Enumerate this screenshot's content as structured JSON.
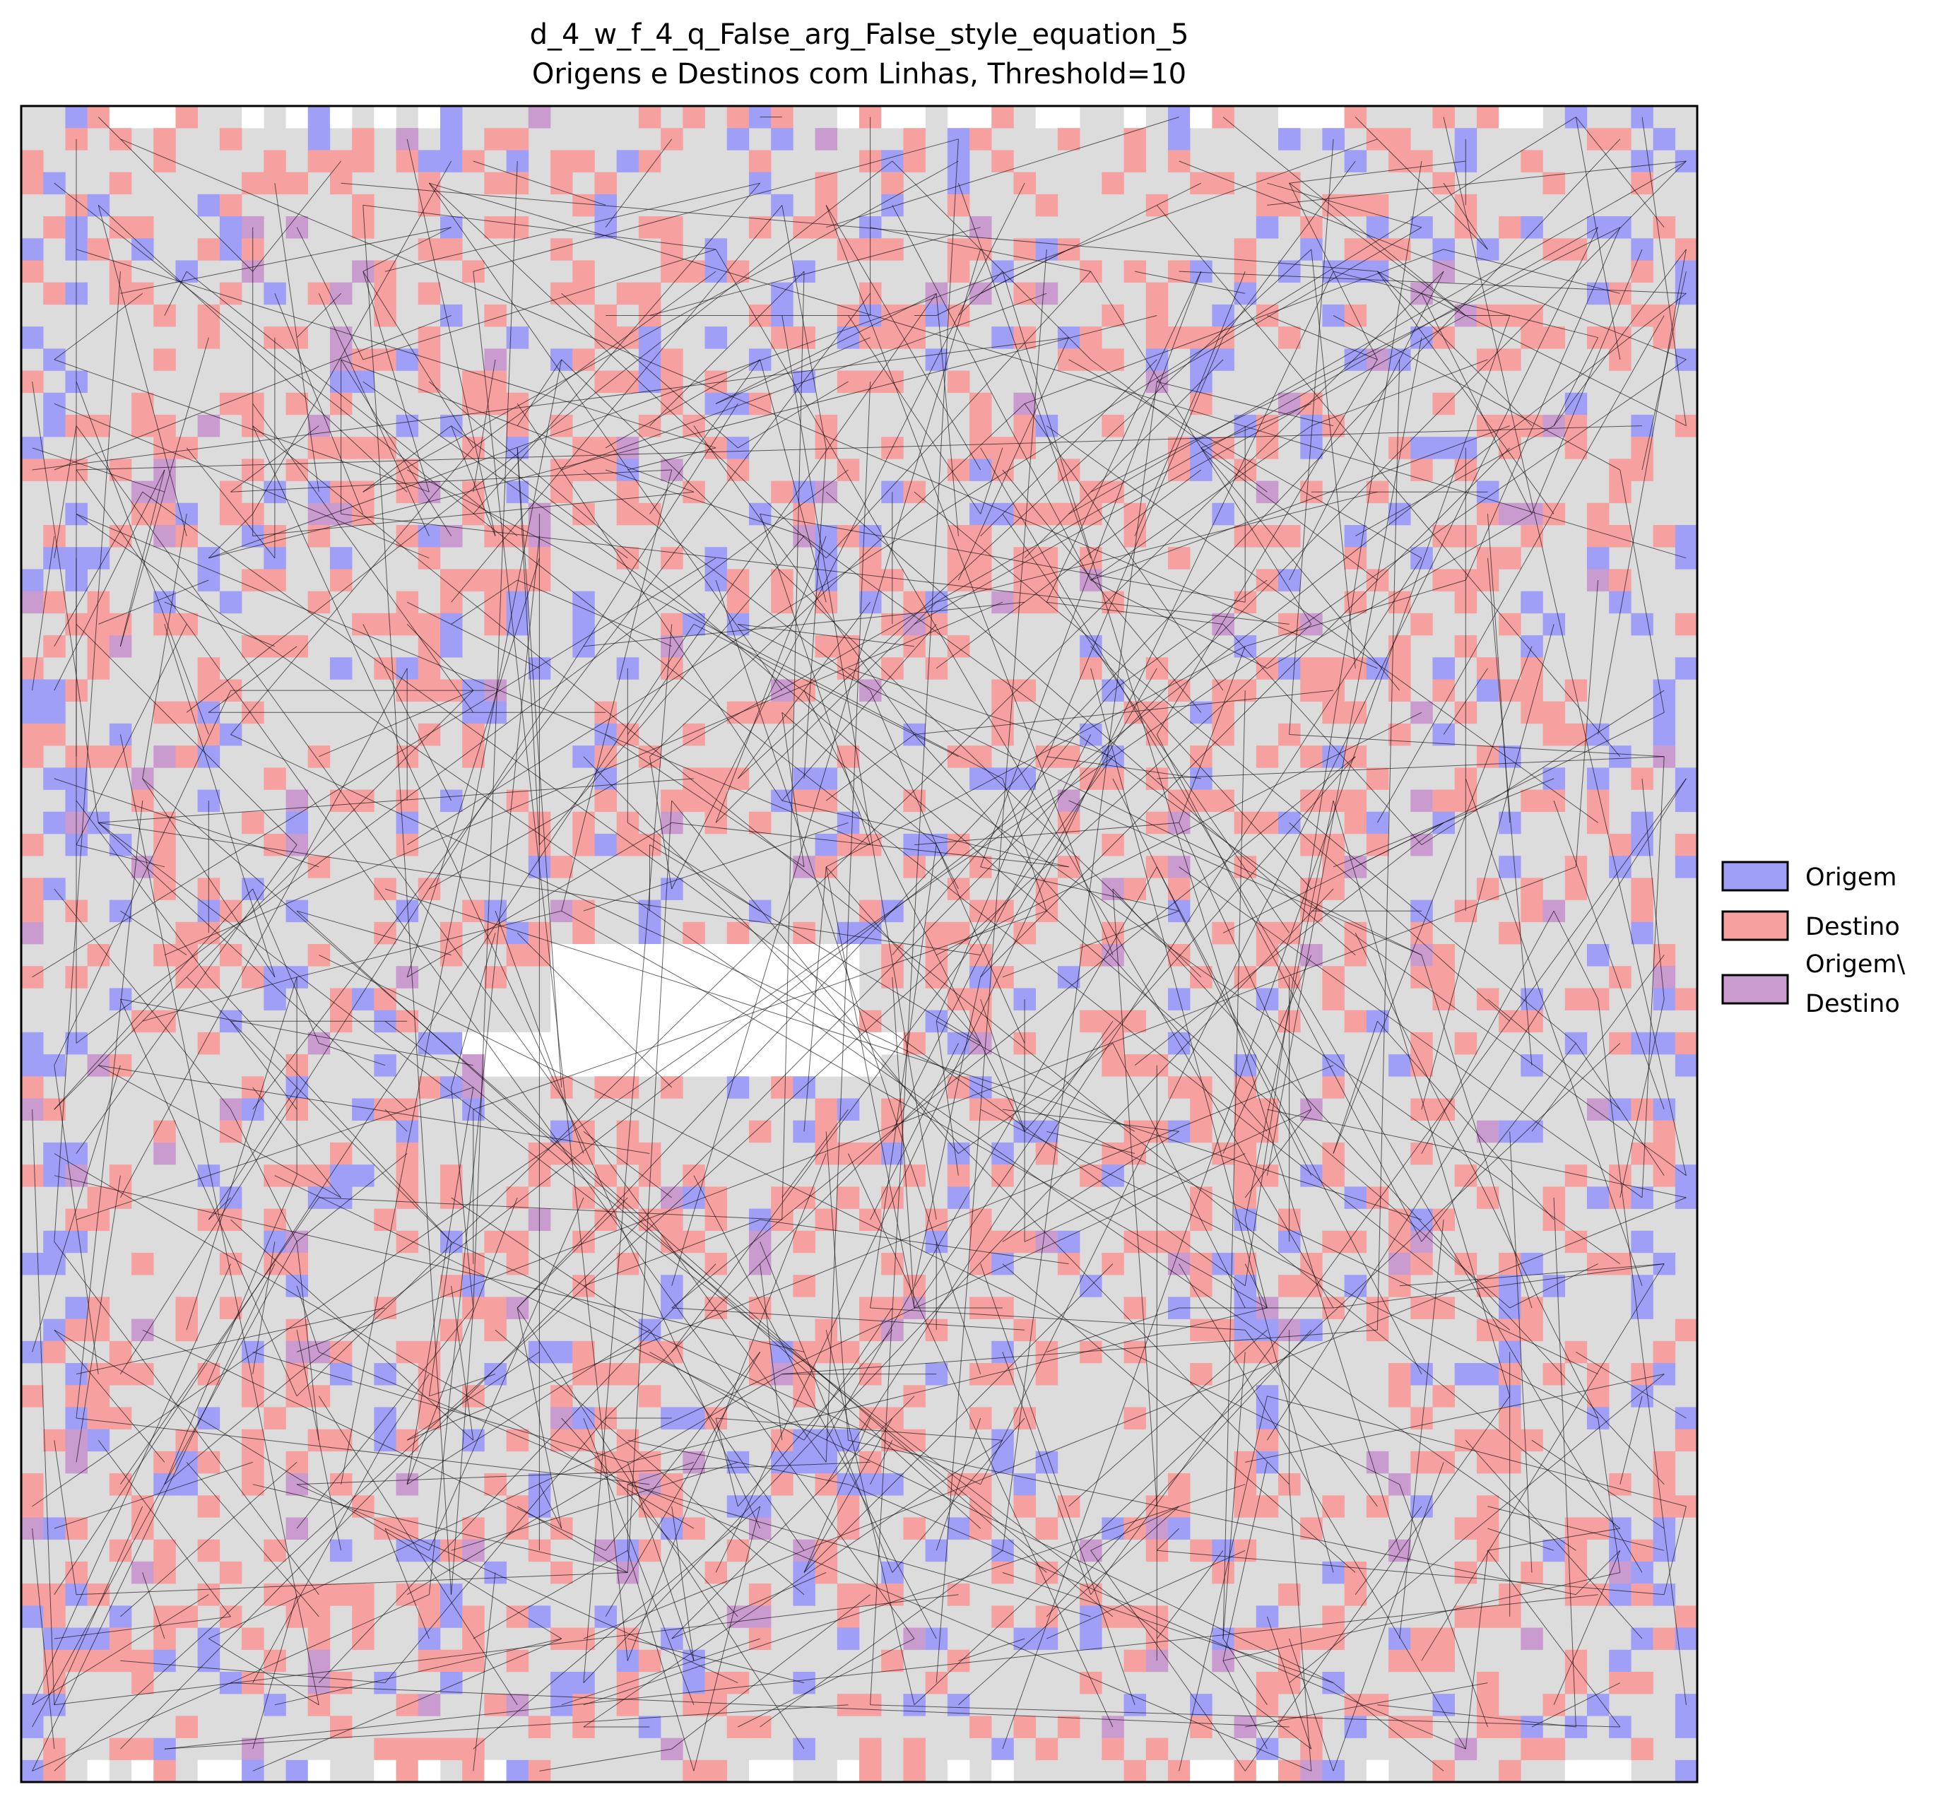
{
  "chart_data": {
    "type": "heatmap",
    "title_lines": [
      "d_4_w_f_4_q_False_arg_False_style_equation_5",
      "Origens e Destinos com Linhas, Threshold=10"
    ],
    "xlabel": "",
    "ylabel": "",
    "axis_ticks": false,
    "grid_size": [
      76,
      76
    ],
    "background_color": "#dcdcdc",
    "legend": {
      "placement": "right-center",
      "entries": [
        {
          "label_lines": [
            "Origem"
          ],
          "color": "#9f9ff7"
        },
        {
          "label_lines": [
            "Destino"
          ],
          "color": "#f7a0a0"
        },
        {
          "label_lines": [
            "Origem\\",
            "Destino"
          ],
          "color": "#c99bce"
        }
      ]
    },
    "line_color": "#000000",
    "random_seed": 5
  }
}
